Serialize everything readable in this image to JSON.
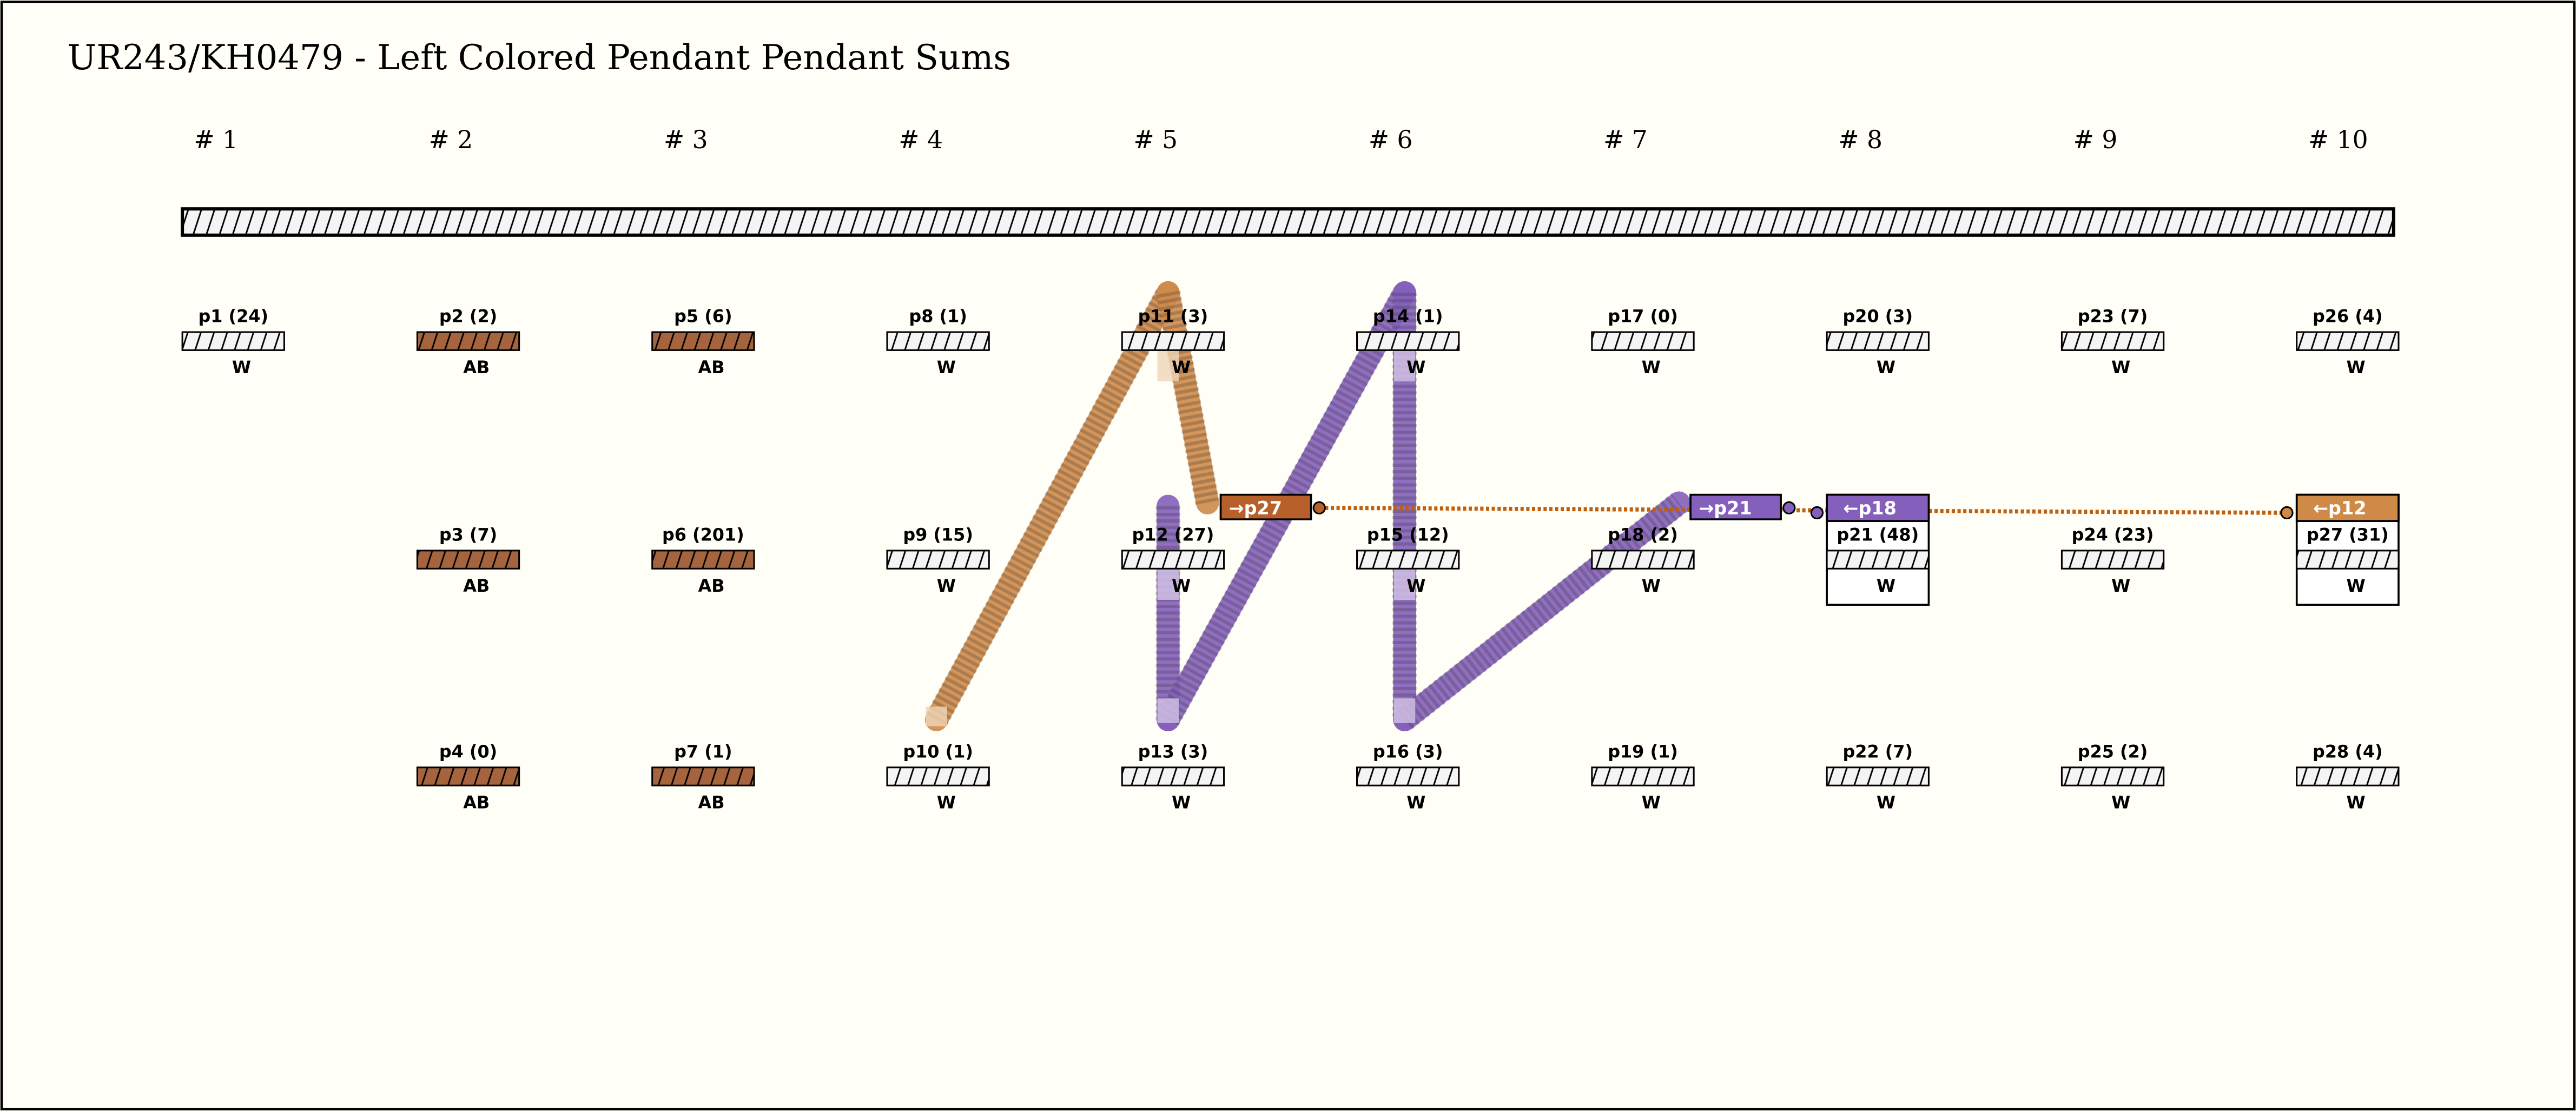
{
  "title": "UR243/KH0479 - Left Colored Pendant Pendant Sums",
  "columns": [
    "# 1",
    "# 2",
    "# 3",
    "# 4",
    "# 5",
    "# 6",
    "# 7",
    "# 8",
    "# 9",
    "# 10"
  ],
  "colors": {
    "AB": "#a5643e",
    "W": "#f4f4f4",
    "orange": "#cf8a48",
    "orange_dark": "#b8602a",
    "purple": "#8460bc",
    "dotted": "#c0600f"
  },
  "pendants": [
    {
      "id": "p1",
      "value": "24",
      "label": "p1 (24)",
      "color": "W",
      "col": 0,
      "row": 0
    },
    {
      "id": "p2",
      "value": "2",
      "label": "p2 (2)",
      "color": "AB",
      "col": 1,
      "row": 0
    },
    {
      "id": "p3",
      "value": "7",
      "label": "p3 (7)",
      "color": "AB",
      "col": 1,
      "row": 1
    },
    {
      "id": "p4",
      "value": "0",
      "label": "p4 (0)",
      "color": "AB",
      "col": 1,
      "row": 2
    },
    {
      "id": "p5",
      "value": "6",
      "label": "p5 (6)",
      "color": "AB",
      "col": 2,
      "row": 0
    },
    {
      "id": "p6",
      "value": "201",
      "label": "p6 (201)",
      "color": "AB",
      "col": 2,
      "row": 1
    },
    {
      "id": "p7",
      "value": "1",
      "label": "p7 (1)",
      "color": "AB",
      "col": 2,
      "row": 2
    },
    {
      "id": "p8",
      "value": "1",
      "label": "p8 (1)",
      "color": "W",
      "col": 3,
      "row": 0
    },
    {
      "id": "p9",
      "value": "15",
      "label": "p9 (15)",
      "color": "W",
      "col": 3,
      "row": 1
    },
    {
      "id": "p10",
      "value": "1",
      "label": "p10 (1)",
      "color": "W",
      "col": 3,
      "row": 2
    },
    {
      "id": "p11",
      "value": "3",
      "label": "p11 (3)",
      "color": "W",
      "col": 4,
      "row": 0
    },
    {
      "id": "p12",
      "value": "27",
      "label": "p12 (27)",
      "color": "W",
      "col": 4,
      "row": 1
    },
    {
      "id": "p13",
      "value": "3",
      "label": "p13 (3)",
      "color": "W",
      "col": 4,
      "row": 2
    },
    {
      "id": "p14",
      "value": "1",
      "label": "p14 (1)",
      "color": "W",
      "col": 5,
      "row": 0
    },
    {
      "id": "p15",
      "value": "12",
      "label": "p15 (12)",
      "color": "W",
      "col": 5,
      "row": 1
    },
    {
      "id": "p16",
      "value": "3",
      "label": "p16 (3)",
      "color": "W",
      "col": 5,
      "row": 2
    },
    {
      "id": "p17",
      "value": "0",
      "label": "p17 (0)",
      "color": "W",
      "col": 6,
      "row": 0
    },
    {
      "id": "p18",
      "value": "2",
      "label": "p18 (2)",
      "color": "W",
      "col": 6,
      "row": 1
    },
    {
      "id": "p19",
      "value": "1",
      "label": "p19 (1)",
      "color": "W",
      "col": 6,
      "row": 2
    },
    {
      "id": "p20",
      "value": "3",
      "label": "p20 (3)",
      "color": "W",
      "col": 7,
      "row": 0
    },
    {
      "id": "p21",
      "value": "48",
      "label": "p21 (48)",
      "color": "W",
      "col": 7,
      "row": 1,
      "sum": true
    },
    {
      "id": "p22",
      "value": "7",
      "label": "p22 (7)",
      "color": "W",
      "col": 7,
      "row": 2
    },
    {
      "id": "p23",
      "value": "7",
      "label": "p23 (7)",
      "color": "W",
      "col": 8,
      "row": 0
    },
    {
      "id": "p24",
      "value": "23",
      "label": "p24 (23)",
      "color": "W",
      "col": 8,
      "row": 1
    },
    {
      "id": "p25",
      "value": "2",
      "label": "p25 (2)",
      "color": "W",
      "col": 8,
      "row": 2
    },
    {
      "id": "p26",
      "value": "4",
      "label": "p26 (4)",
      "color": "W",
      "col": 9,
      "row": 0
    },
    {
      "id": "p27",
      "value": "31",
      "label": "p27 (31)",
      "color": "W",
      "col": 9,
      "row": 1,
      "sum": true
    },
    {
      "id": "p28",
      "value": "4",
      "label": "p28 (4)",
      "color": "W",
      "col": 9,
      "row": 2
    }
  ],
  "sum_markers": [
    {
      "label": "→p27",
      "color": "orange_dark",
      "kind": "out",
      "col": 4
    },
    {
      "label": "→p21",
      "color": "purple",
      "kind": "out",
      "col": 6
    },
    {
      "label": "←p18",
      "color": "purple",
      "kind": "in",
      "col": 7
    },
    {
      "label": "←p12",
      "color": "orange",
      "kind": "in",
      "col": 9
    }
  ]
}
